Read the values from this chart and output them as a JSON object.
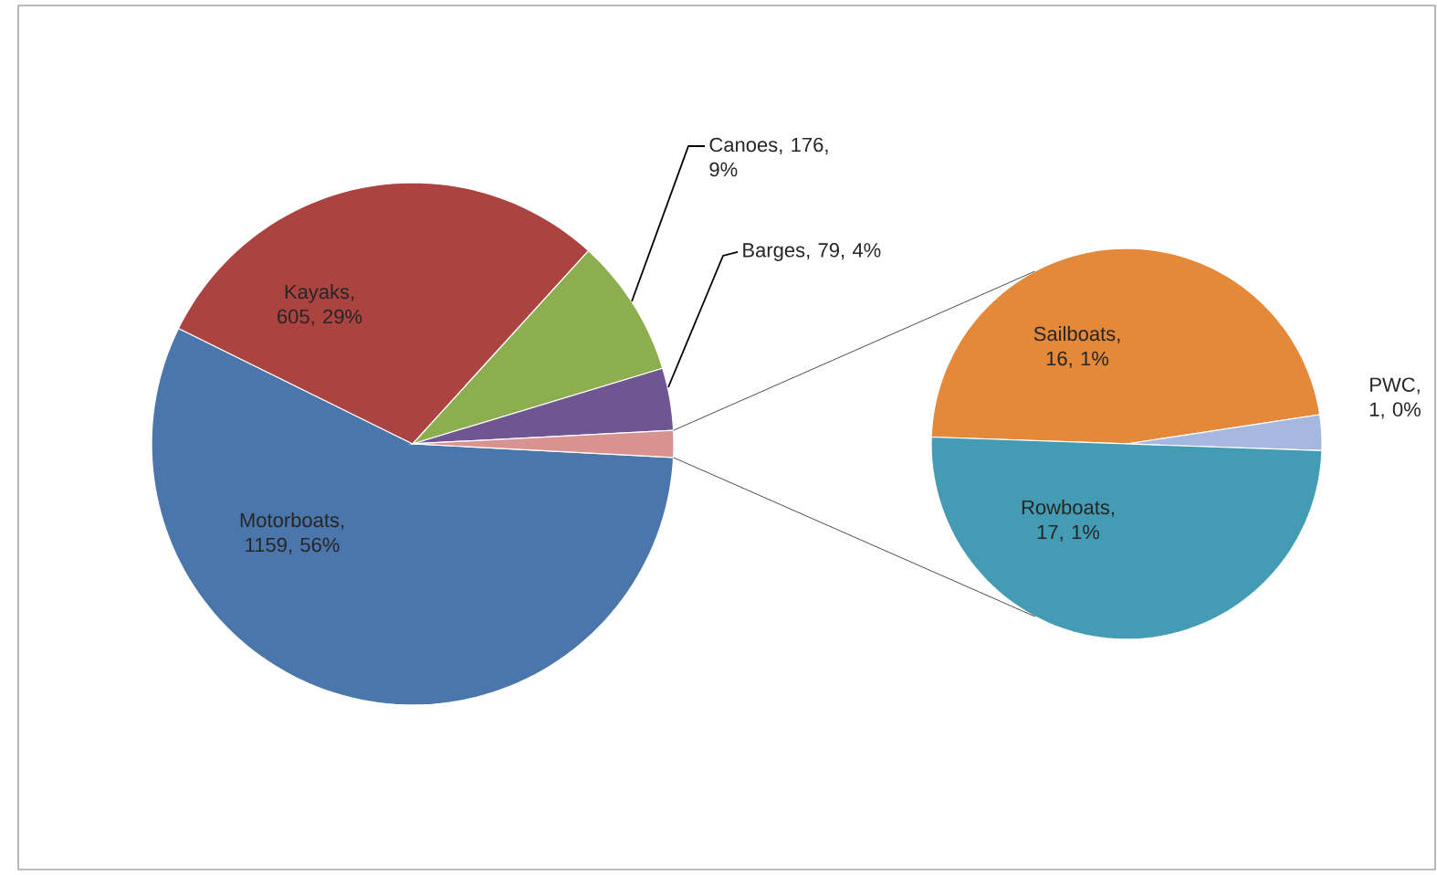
{
  "chart_data": [
    {
      "type": "pie",
      "categories": [
        "Motorboats",
        "Kayaks",
        "Canoes",
        "Barges",
        null
      ],
      "values": [
        1159,
        605,
        176,
        79,
        34
      ],
      "value_labels": [
        ", 1159, 56%",
        ", 605, 29%",
        ", 176, 9%",
        ", 79, 4%",
        null
      ],
      "colors": [
        "#4a76ab",
        "#ab4340",
        "#8cae4f",
        "#6f5692",
        "#d8928f"
      ]
    },
    {
      "type": "pie",
      "categories": [
        "Sailboats",
        "PWC",
        "Rowboats"
      ],
      "values": [
        16,
        1,
        17
      ],
      "value_labels": [
        ", 16, 1%",
        ", 1, 0%",
        ", 17, 1%"
      ],
      "colors": [
        "#e4883a",
        "#a6b8e0",
        "#439cb3"
      ]
    }
  ]
}
